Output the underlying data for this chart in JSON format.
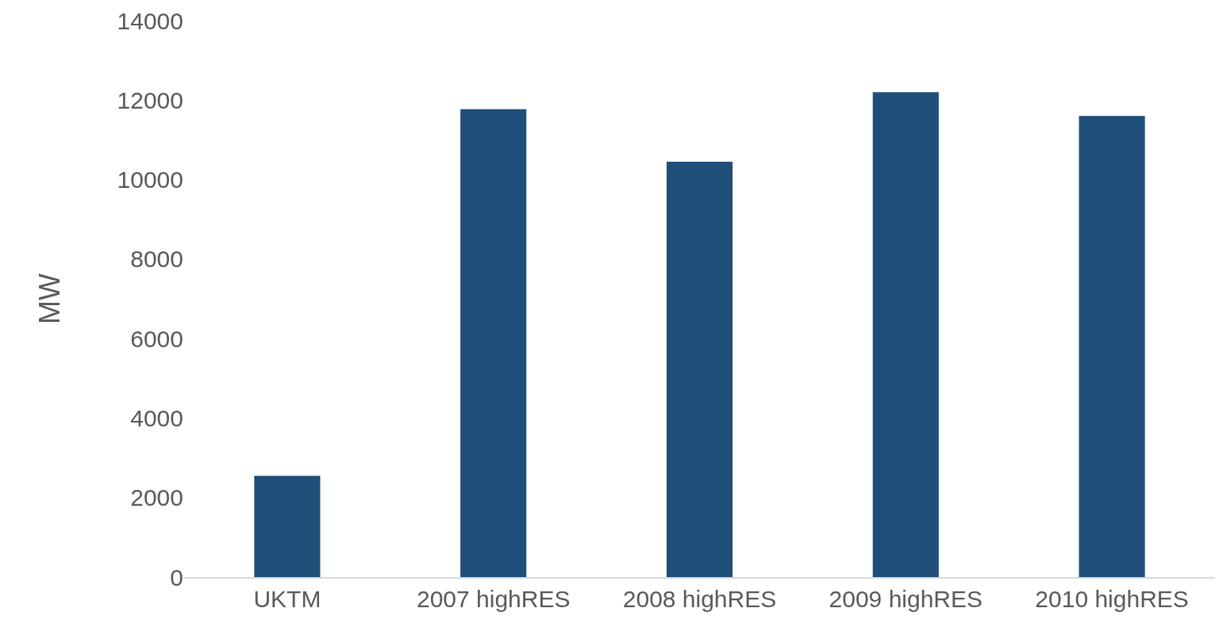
{
  "chart_data": {
    "type": "bar",
    "ylabel": "MW",
    "categories": [
      "UKTM",
      "2007 highRES",
      "2008 highRES",
      "2009 highRES",
      "2010 highRES"
    ],
    "values": [
      2550,
      11770,
      10450,
      12200,
      11600
    ],
    "color": "#1f4e79",
    "ylim": [
      0,
      14000
    ],
    "yticks": [
      0,
      2000,
      4000,
      6000,
      8000,
      10000,
      12000,
      14000
    ]
  }
}
